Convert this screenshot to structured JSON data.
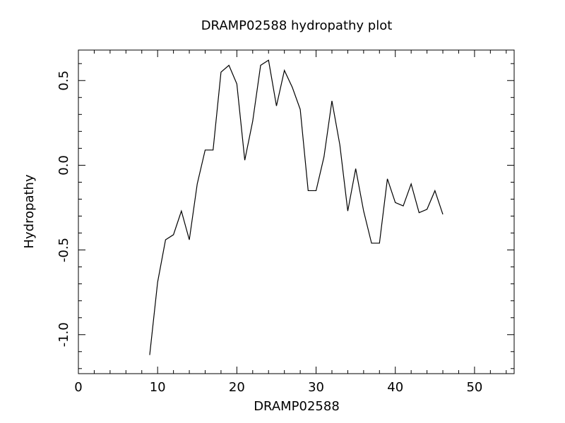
{
  "chart_data": {
    "type": "line",
    "title": "DRAMP02588 hydropathy plot",
    "xlabel": "DRAMP02588",
    "ylabel": "Hydropathy",
    "x": [
      9,
      10,
      11,
      12,
      13,
      14,
      15,
      16,
      17,
      18,
      19,
      20,
      21,
      22,
      23,
      24,
      25,
      26,
      27,
      28,
      29,
      30,
      31,
      32,
      33,
      34,
      35,
      36,
      37,
      38,
      39,
      40,
      41,
      42,
      43,
      44,
      45,
      46
    ],
    "values": [
      -1.12,
      -0.69,
      -0.44,
      -0.41,
      -0.27,
      -0.44,
      -0.11,
      0.09,
      0.09,
      0.55,
      0.59,
      0.48,
      0.03,
      0.26,
      0.59,
      0.62,
      0.35,
      0.56,
      0.46,
      0.33,
      -0.15,
      -0.15,
      0.05,
      0.38,
      0.12,
      -0.27,
      -0.02,
      -0.27,
      -0.46,
      -0.46,
      -0.08,
      -0.22,
      -0.24,
      -0.11,
      -0.28,
      -0.26,
      -0.15,
      -0.29
    ],
    "color": "#000000",
    "xlim": [
      0,
      55
    ],
    "ylim": [
      -1.23,
      0.68
    ],
    "xticks": [
      0,
      10,
      20,
      30,
      40,
      50
    ],
    "xminorticks": [
      2,
      4,
      6,
      8,
      12,
      14,
      16,
      18,
      22,
      24,
      26,
      28,
      32,
      34,
      36,
      38,
      42,
      44,
      46,
      48,
      52,
      54
    ],
    "yticks": [
      {
        "value": -1.0,
        "label": "-1.0"
      },
      {
        "value": -0.5,
        "label": "-0.5"
      },
      {
        "value": 0,
        "label": "0.0"
      },
      0.5
    ],
    "yminorticks": [
      -1.2,
      -1.1,
      -0.9,
      -0.8,
      -0.7,
      -0.6,
      -0.4,
      -0.3,
      -0.2,
      -0.1,
      0.1,
      0.2,
      0.3,
      0.4,
      0.6
    ]
  }
}
